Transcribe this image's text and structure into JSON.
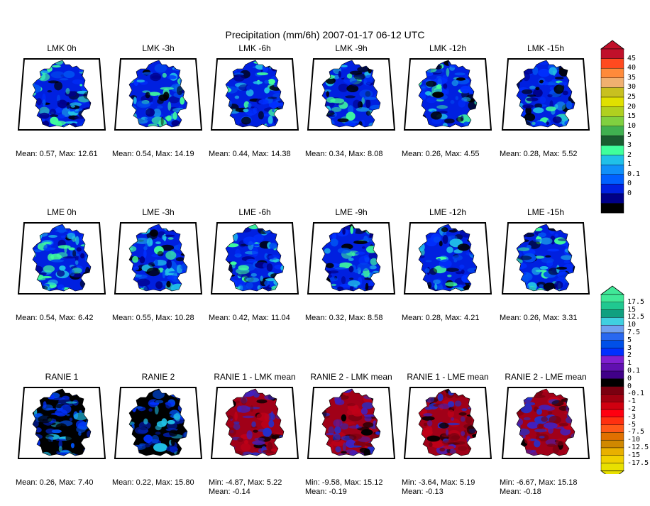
{
  "title": "Precipitation (mm/6h) 2007-01-17 06-12 UTC",
  "chart_data": [
    {
      "type": "heatmap",
      "title": "LMK 0h",
      "stats": [
        "Mean: 0.57, Max: 12.61"
      ],
      "mean": 0.57,
      "max": 12.61,
      "scale": "precip"
    },
    {
      "type": "heatmap",
      "title": "LMK -3h",
      "stats": [
        "Mean: 0.54, Max: 14.19"
      ],
      "mean": 0.54,
      "max": 14.19,
      "scale": "precip"
    },
    {
      "type": "heatmap",
      "title": "LMK -6h",
      "stats": [
        "Mean: 0.44, Max: 14.38"
      ],
      "mean": 0.44,
      "max": 14.38,
      "scale": "precip"
    },
    {
      "type": "heatmap",
      "title": "LMK -9h",
      "stats": [
        "Mean: 0.34, Max: 8.08"
      ],
      "mean": 0.34,
      "max": 8.08,
      "scale": "precip"
    },
    {
      "type": "heatmap",
      "title": "LMK -12h",
      "stats": [
        "Mean: 0.26, Max: 4.55"
      ],
      "mean": 0.26,
      "max": 4.55,
      "scale": "precip"
    },
    {
      "type": "heatmap",
      "title": "LMK -15h",
      "stats": [
        "Mean: 0.28, Max: 5.52"
      ],
      "mean": 0.28,
      "max": 5.52,
      "scale": "precip"
    },
    {
      "type": "heatmap",
      "title": "LME 0h",
      "stats": [
        "Mean: 0.54, Max: 6.42"
      ],
      "mean": 0.54,
      "max": 6.42,
      "scale": "precip"
    },
    {
      "type": "heatmap",
      "title": "LME -3h",
      "stats": [
        "Mean: 0.55, Max: 10.28"
      ],
      "mean": 0.55,
      "max": 10.28,
      "scale": "precip"
    },
    {
      "type": "heatmap",
      "title": "LME -6h",
      "stats": [
        "Mean: 0.42, Max: 11.04"
      ],
      "mean": 0.42,
      "max": 11.04,
      "scale": "precip"
    },
    {
      "type": "heatmap",
      "title": "LME -9h",
      "stats": [
        "Mean: 0.32, Max: 8.58"
      ],
      "mean": 0.32,
      "max": 8.58,
      "scale": "precip"
    },
    {
      "type": "heatmap",
      "title": "LME -12h",
      "stats": [
        "Mean: 0.28, Max: 4.21"
      ],
      "mean": 0.28,
      "max": 4.21,
      "scale": "precip"
    },
    {
      "type": "heatmap",
      "title": "LME -15h",
      "stats": [
        "Mean: 0.26, Max: 3.31"
      ],
      "mean": 0.26,
      "max": 3.31,
      "scale": "precip"
    },
    {
      "type": "heatmap",
      "title": "RANIE 1",
      "stats": [
        "Mean: 0.26, Max: 7.40"
      ],
      "mean": 0.26,
      "max": 7.4,
      "scale": "precip"
    },
    {
      "type": "heatmap",
      "title": "RANIE 2",
      "stats": [
        "Mean: 0.22, Max: 15.80"
      ],
      "mean": 0.22,
      "max": 15.8,
      "scale": "precip"
    },
    {
      "type": "heatmap",
      "title": "RANIE 1 - LMK mean",
      "stats": [
        "Min: -4.87, Max: 5.22",
        "Mean: -0.14"
      ],
      "min": -4.87,
      "max": 5.22,
      "mean": -0.14,
      "scale": "diff"
    },
    {
      "type": "heatmap",
      "title": "RANIE 2 - LMK mean",
      "stats": [
        "Min: -9.58, Max: 15.12",
        "Mean: -0.19"
      ],
      "min": -9.58,
      "max": 15.12,
      "mean": -0.19,
      "scale": "diff"
    },
    {
      "type": "heatmap",
      "title": "RANIE 1 - LME mean",
      "stats": [
        "Min: -3.64, Max: 5.19",
        "Mean: -0.13"
      ],
      "min": -3.64,
      "max": 5.19,
      "mean": -0.13,
      "scale": "diff"
    },
    {
      "type": "heatmap",
      "title": "RANIE 2 - LME mean",
      "stats": [
        "Min: -6.67, Max: 15.18",
        "Mean: -0.18"
      ],
      "min": -6.67,
      "max": 15.18,
      "mean": -0.18,
      "scale": "diff"
    }
  ],
  "colorbars": {
    "precip": {
      "levels": [
        "45",
        "40",
        "35",
        "30",
        "25",
        "20",
        "15",
        "10",
        "5",
        "3",
        "2",
        "1",
        "0.1",
        "0",
        "0"
      ],
      "colors": [
        "#c0102a",
        "#ff4a1f",
        "#ff8a3a",
        "#f0b070",
        "#c8c020",
        "#e0e000",
        "#b0d020",
        "#80d040",
        "#40b050",
        "#1a5c30",
        "#40ff9c",
        "#20c0e8",
        "#1090f8",
        "#0060ff",
        "#0020e0",
        "#000088",
        "#000000"
      ]
    },
    "diff": {
      "levels": [
        "17.5",
        "15",
        "12.5",
        "10",
        "7.5",
        "5",
        "3",
        "2",
        "1",
        "0.1",
        "0",
        "0",
        "-0.1",
        "-1",
        "-2",
        "-3",
        "-5",
        "-7.5",
        "-10",
        "-12.5",
        "-15",
        "-17.5"
      ],
      "colors": [
        "#40e898",
        "#20c890",
        "#10a080",
        "#40d0e0",
        "#70a0f0",
        "#2868f0",
        "#0050e8",
        "#0030ff",
        "#8020d0",
        "#6010b0",
        "#400088",
        "#000000",
        "#7a0010",
        "#a00010",
        "#d00010",
        "#ff0010",
        "#ff3010",
        "#ff5818",
        "#e07000",
        "#d08800",
        "#e8b000",
        "#f0d000",
        "#e8e000"
      ]
    }
  }
}
